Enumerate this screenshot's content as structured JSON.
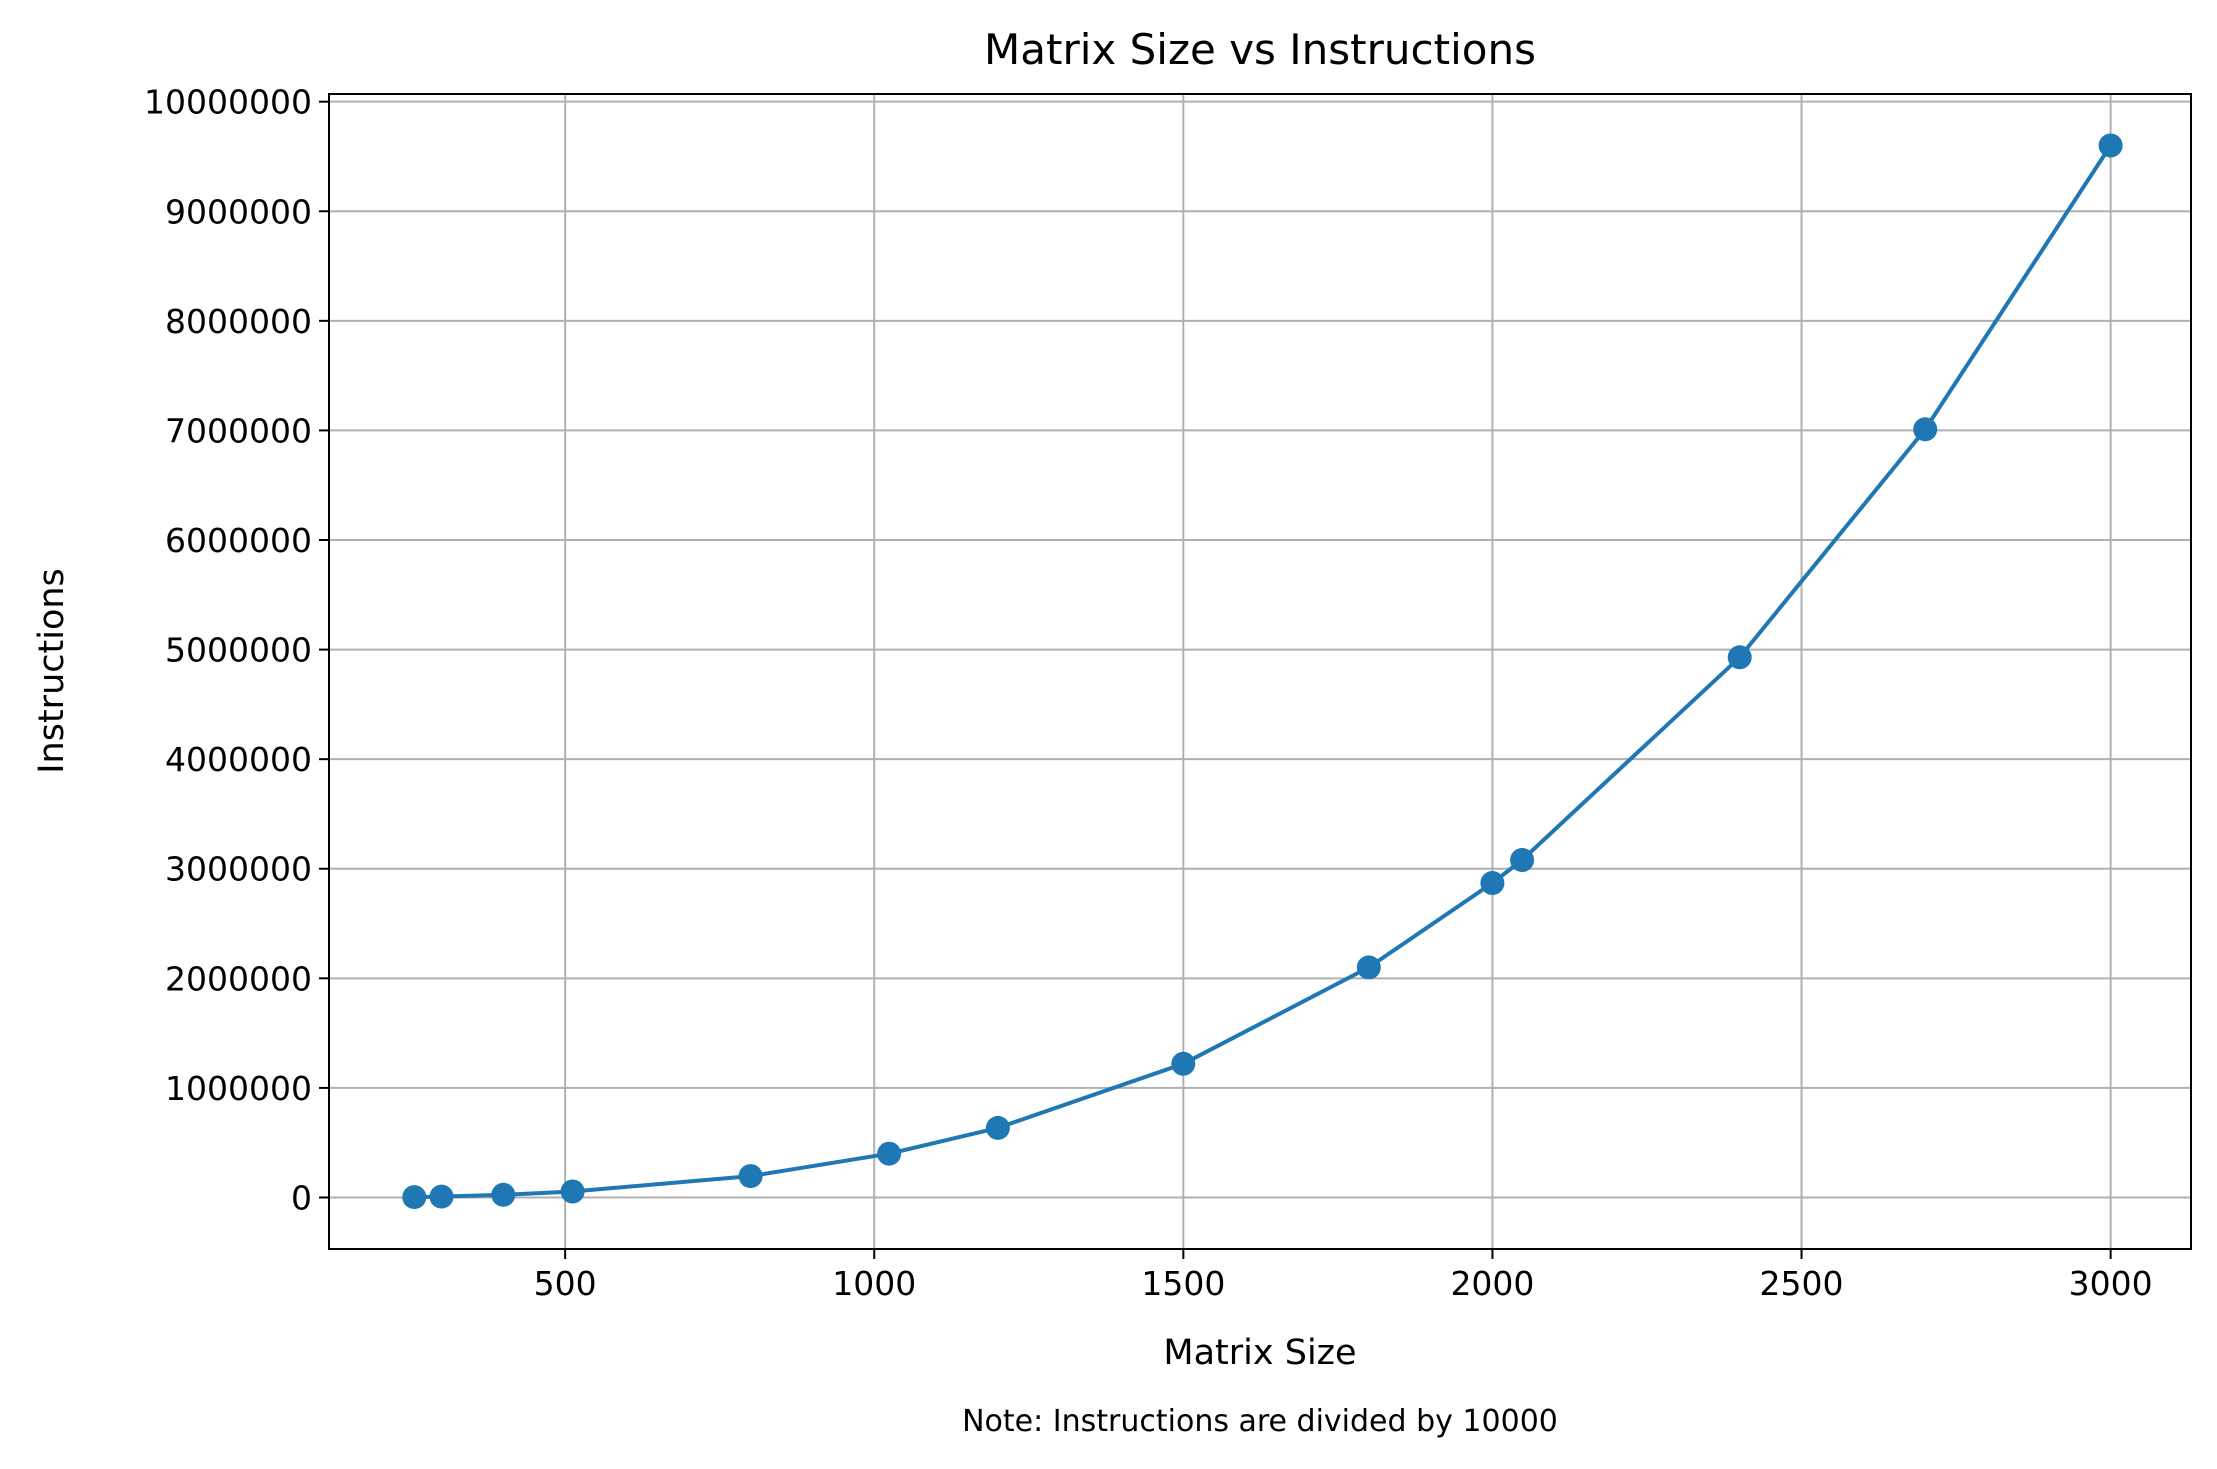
{
  "chart_data": {
    "type": "line",
    "title": "Matrix Size vs Instructions",
    "xlabel": "Matrix Size",
    "ylabel": "Instructions",
    "note": "Note: Instructions are divided by 10000",
    "grid": true,
    "xlim": [
      118,
      3130
    ],
    "ylim": [
      -470000,
      10070000
    ],
    "xticks": [
      500,
      1000,
      1500,
      2000,
      2500,
      3000
    ],
    "yticks": [
      0,
      1000000,
      2000000,
      3000000,
      4000000,
      5000000,
      6000000,
      7000000,
      8000000,
      9000000,
      10000000
    ],
    "series": [
      {
        "name": "Instructions",
        "color": "#1f77b4",
        "marker": "circle",
        "x": [
          256,
          300,
          400,
          512,
          800,
          1024,
          1200,
          1500,
          1800,
          2000,
          2048,
          2400,
          2700,
          3000
        ],
        "y": [
          4000,
          8000,
          25000,
          55000,
          195000,
          400000,
          635000,
          1220000,
          2100000,
          2870000,
          3080000,
          4930000,
          7010000,
          9600000
        ]
      }
    ]
  }
}
